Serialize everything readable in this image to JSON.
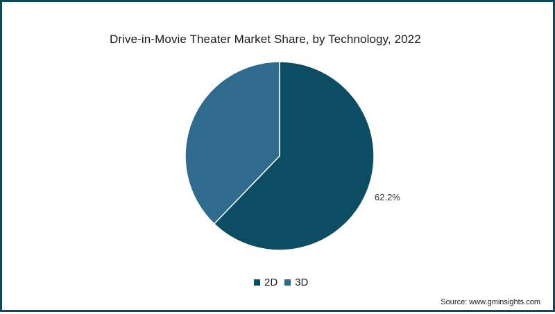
{
  "chart_data": {
    "type": "pie",
    "title": "Drive-in-Movie Theater Market Share, by Technology, 2022",
    "categories": [
      "2D",
      "3D"
    ],
    "values": [
      62.2,
      37.8
    ],
    "data_labels": [
      "62.2%",
      ""
    ],
    "colors": [
      "#0d4d63",
      "#2e6b8c"
    ],
    "legend_position": "bottom"
  },
  "legend": {
    "items": [
      {
        "label": "2D",
        "color": "#0d4d63"
      },
      {
        "label": "3D",
        "color": "#2e6b8c"
      }
    ]
  },
  "source": "Source: www.gminsights.com",
  "border_color": "#0e4a5c"
}
